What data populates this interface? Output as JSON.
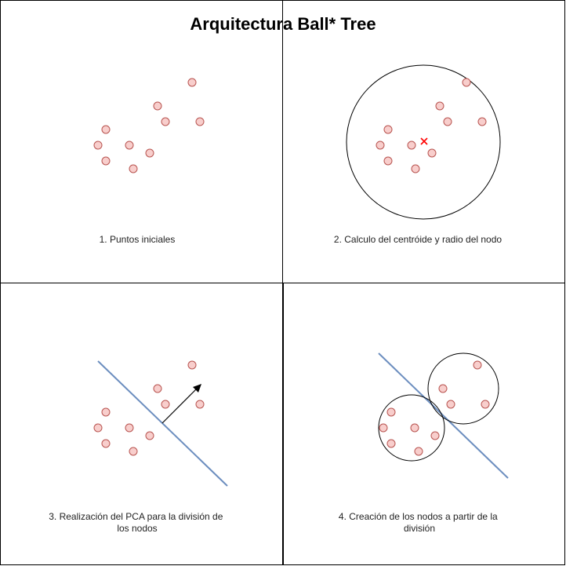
{
  "title": "Arquitectura Ball* Tree",
  "panels": [
    {
      "caption": [
        "1. Puntos iniciales"
      ]
    },
    {
      "caption": [
        "2. Calculo del centróide y radio del nodo"
      ]
    },
    {
      "caption": [
        "3. Realización del PCA para la división de",
        "los nodos"
      ]
    },
    {
      "caption": [
        "4. Creación de los nodos a partir de la",
        "división"
      ]
    }
  ],
  "colors": {
    "point_fill": "#f8cecc",
    "point_stroke": "#b85450",
    "split_line": "#6c8ebf",
    "centroid": "#ff0000"
  }
}
